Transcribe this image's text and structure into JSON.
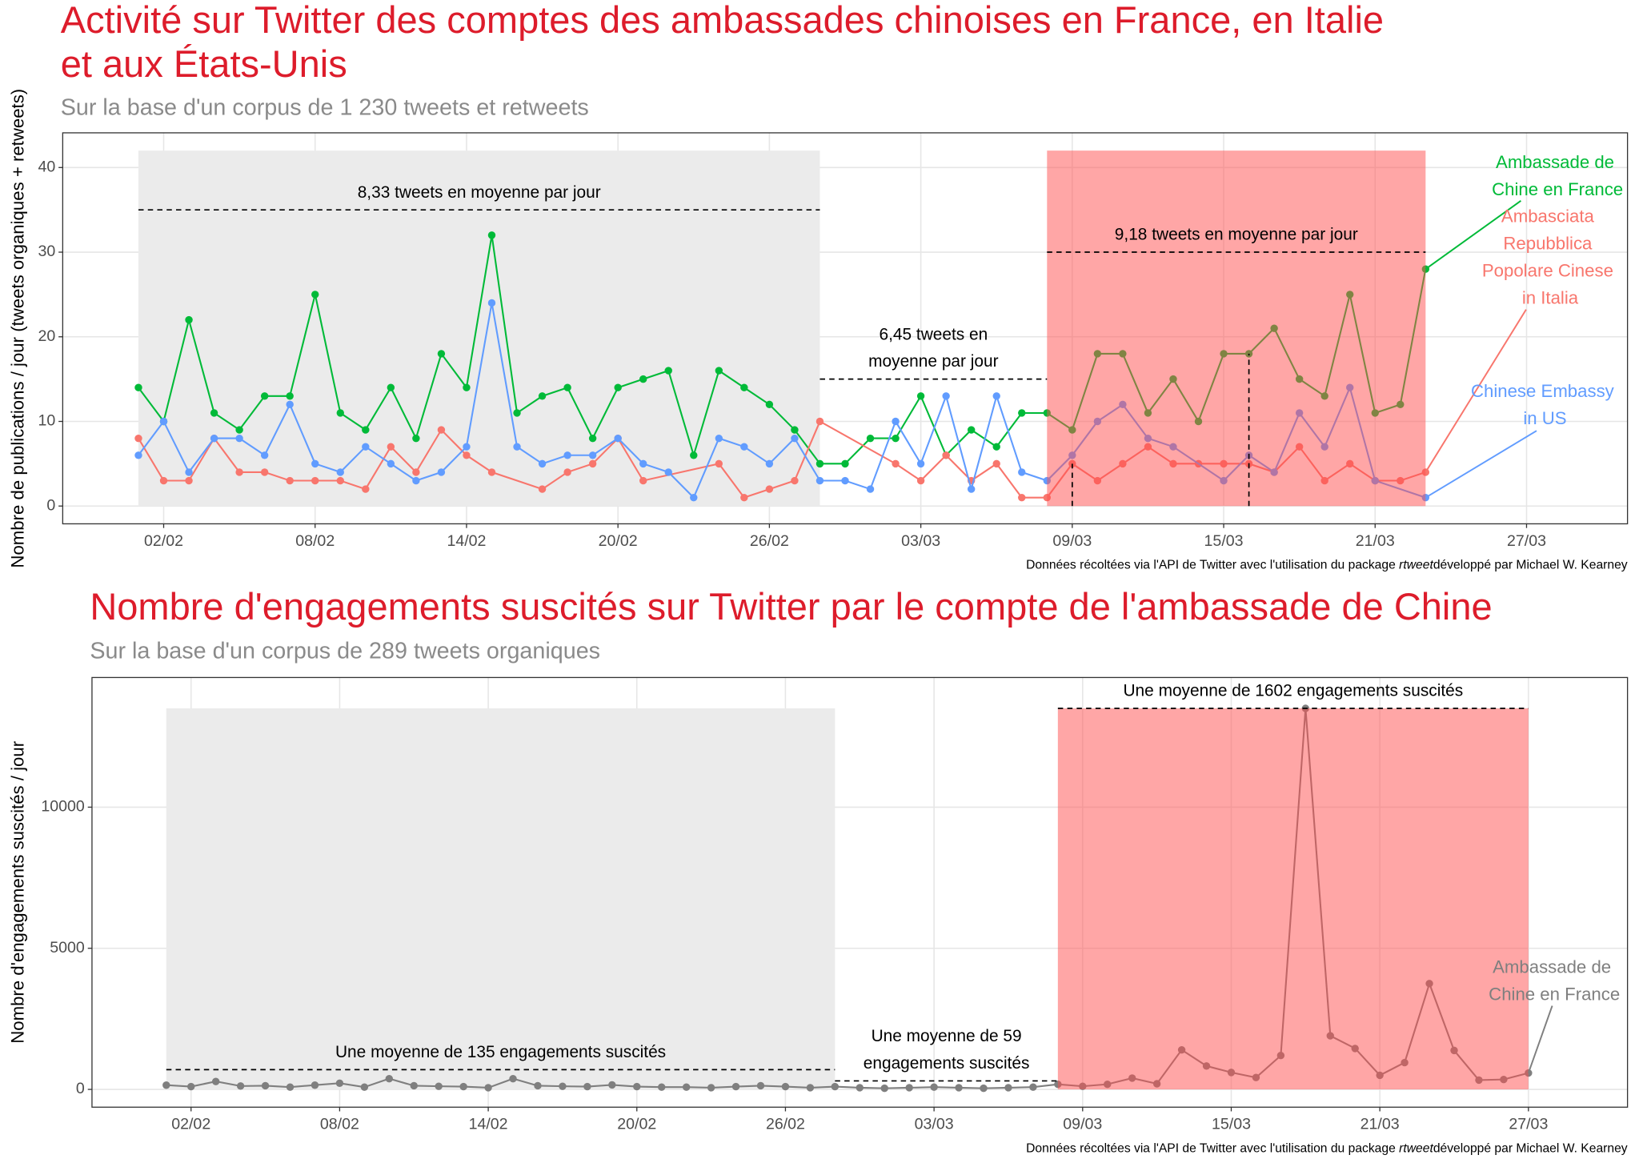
{
  "chart_data": [
    {
      "type": "line",
      "title": [
        "Activité sur Twitter des comptes des ambassades chinoises en France, en Italie",
        "et aux États-Unis"
      ],
      "subtitle": "Sur la base d'un corpus de 1 230 tweets et retweets",
      "ylabel": "Nombre de publications / jour (tweets organiques + retweets)",
      "caption": [
        "Données récoltées via l'API de Twitter avec l'utilisation du package ",
        "rtweet",
        "développé par Michael W. Kearney"
      ],
      "xlim": [
        "29/01",
        "31/03"
      ],
      "xticks": [
        "02/02",
        "08/02",
        "14/02",
        "20/02",
        "26/02",
        "03/03",
        "09/03",
        "15/03",
        "21/03",
        "27/03"
      ],
      "ylim": [
        -2.1,
        44.1
      ],
      "yticks": [
        0,
        10,
        20,
        30,
        40
      ],
      "grid": true,
      "series": [
        {
          "name": "Ambassade de Chine en France",
          "color": "#00ba38",
          "x": [
            "01/02",
            "02/02",
            "03/02",
            "04/02",
            "05/02",
            "06/02",
            "07/02",
            "08/02",
            "09/02",
            "10/02",
            "11/02",
            "12/02",
            "13/02",
            "14/02",
            "15/02",
            "16/02",
            "17/02",
            "18/02",
            "19/02",
            "20/02",
            "21/02",
            "22/02",
            "23/02",
            "24/02",
            "25/02",
            "26/02",
            "27/02",
            "28/02",
            "29/02",
            "01/03",
            "02/03",
            "03/03",
            "04/03",
            "05/03",
            "06/03",
            "07/03",
            "08/03",
            "09/03",
            "10/03",
            "11/03",
            "12/03",
            "13/03",
            "14/03",
            "15/03",
            "16/03",
            "17/03",
            "18/03",
            "19/03",
            "20/03",
            "21/03",
            "22/03",
            "23/03"
          ],
          "values": [
            14,
            10,
            22,
            11,
            9,
            13,
            13,
            25,
            11,
            9,
            14,
            8,
            18,
            14,
            32,
            11,
            13,
            14,
            8,
            14,
            15,
            16,
            6,
            16,
            14,
            12,
            9,
            5,
            5,
            8,
            8,
            13,
            6,
            9,
            7,
            11,
            11,
            9,
            18,
            18,
            11,
            15,
            10,
            18,
            18,
            21,
            15,
            13,
            25,
            11,
            12,
            28
          ]
        },
        {
          "name": "Ambasciata Repubblica Popolare Cinese in Italia",
          "color": "#f8766d",
          "x": [
            "01/02",
            "02/02",
            "03/02",
            "04/02",
            "05/02",
            "06/02",
            "07/02",
            "08/02",
            "09/02",
            "10/02",
            "11/02",
            "12/02",
            "13/02",
            "14/02",
            "15/02",
            "17/02",
            "18/02",
            "19/02",
            "20/02",
            "21/02",
            "24/02",
            "25/02",
            "26/02",
            "27/02",
            "28/02",
            "02/03",
            "03/03",
            "04/03",
            "05/03",
            "06/03",
            "07/03",
            "08/03",
            "09/03",
            "10/03",
            "11/03",
            "12/03",
            "13/03",
            "14/03",
            "15/03",
            "16/03",
            "17/03",
            "18/03",
            "19/03",
            "20/03",
            "21/03",
            "22/03",
            "23/03"
          ],
          "values": [
            8,
            3,
            3,
            8,
            4,
            4,
            3,
            3,
            3,
            2,
            7,
            4,
            9,
            6,
            4,
            2,
            4,
            5,
            8,
            3,
            5,
            1,
            2,
            3,
            10,
            5,
            3,
            6,
            3,
            5,
            1,
            1,
            5,
            3,
            5,
            7,
            5,
            5,
            5,
            5,
            4,
            7,
            3,
            5,
            3,
            3,
            4
          ]
        },
        {
          "name": "Chinese Embassy in US",
          "color": "#619cff",
          "x": [
            "01/02",
            "02/02",
            "03/02",
            "04/02",
            "05/02",
            "06/02",
            "07/02",
            "08/02",
            "09/02",
            "10/02",
            "11/02",
            "12/02",
            "13/02",
            "14/02",
            "15/02",
            "16/02",
            "17/02",
            "18/02",
            "19/02",
            "20/02",
            "21/02",
            "22/02",
            "23/02",
            "24/02",
            "25/02",
            "26/02",
            "27/02",
            "28/02",
            "29/02",
            "01/03",
            "02/03",
            "03/03",
            "04/03",
            "05/03",
            "06/03",
            "07/03",
            "08/03",
            "09/03",
            "10/03",
            "11/03",
            "12/03",
            "13/03",
            "15/03",
            "16/03",
            "17/03",
            "18/03",
            "19/03",
            "20/03",
            "21/03",
            "23/03"
          ],
          "values": [
            6,
            10,
            4,
            8,
            8,
            6,
            12,
            5,
            4,
            7,
            5,
            3,
            4,
            7,
            24,
            7,
            5,
            6,
            6,
            8,
            5,
            4,
            1,
            8,
            7,
            5,
            8,
            3,
            3,
            2,
            10,
            5,
            13,
            2,
            13,
            4,
            3,
            6,
            10,
            12,
            8,
            7,
            3,
            6,
            4,
            11,
            7,
            14,
            3,
            1
          ]
        }
      ],
      "spans": [
        {
          "x": [
            "01/02",
            "28/02"
          ],
          "y": [
            0,
            42
          ],
          "color": "#ebebeb"
        },
        {
          "x": [
            "08/03",
            "23/03"
          ],
          "y": [
            0,
            42
          ],
          "color": "#ff4d4d"
        }
      ],
      "annotations": [
        {
          "text": [
            "8,33 tweets en moyenne par jour"
          ],
          "x": [
            "01/02",
            "28/02"
          ],
          "y": 35
        },
        {
          "text": [
            "6,45 tweets en",
            "moyenne par jour"
          ],
          "x": [
            "28/02",
            "08/03"
          ],
          "y": 15
        },
        {
          "text": [
            "9,18 tweets en moyenne par jour"
          ],
          "x": [
            "08/03",
            "23/03"
          ],
          "y": 30
        }
      ],
      "vlines": [
        {
          "x": "09/03",
          "y": 5
        },
        {
          "x": "16/03",
          "y": 18
        }
      ]
    },
    {
      "type": "line",
      "title": [
        "Nombre d'engagements suscités sur Twitter par le compte de l'ambassade de Chine"
      ],
      "subtitle": "Sur la base d'un corpus de 289 tweets organiques",
      "ylabel": "Nombre d'engagements suscités / jour",
      "caption": [
        "Données récoltées via l'API de Twitter avec l'utilisation du package ",
        "rtweet",
        "développé par Michael W. Kearney"
      ],
      "xlim": [
        "29/01",
        "31/03"
      ],
      "xticks": [
        "02/02",
        "08/02",
        "14/02",
        "20/02",
        "26/02",
        "03/03",
        "09/03",
        "15/03",
        "21/03",
        "27/03"
      ],
      "ylim": [
        -630,
        14594
      ],
      "yticks": [
        0,
        5000,
        10000
      ],
      "grid": true,
      "series": [
        {
          "name": "Ambassade de Chine en France",
          "color": "#7f7f7f",
          "x": [
            "01/02",
            "02/02",
            "03/02",
            "04/02",
            "05/02",
            "06/02",
            "07/02",
            "08/02",
            "09/02",
            "10/02",
            "11/02",
            "12/02",
            "13/02",
            "14/02",
            "15/02",
            "16/02",
            "17/02",
            "18/02",
            "19/02",
            "20/02",
            "21/02",
            "22/02",
            "23/02",
            "24/02",
            "25/02",
            "26/02",
            "27/02",
            "28/02",
            "29/02",
            "01/03",
            "02/03",
            "03/03",
            "04/03",
            "05/03",
            "06/03",
            "07/03",
            "08/03",
            "09/03",
            "10/03",
            "11/03",
            "12/03",
            "13/03",
            "14/03",
            "15/03",
            "16/03",
            "17/03",
            "18/03",
            "19/03",
            "20/03",
            "21/03",
            "22/03",
            "23/03",
            "24/03",
            "25/03",
            "26/03",
            "27/03"
          ],
          "values": [
            150,
            100,
            280,
            120,
            130,
            80,
            150,
            220,
            80,
            380,
            130,
            110,
            100,
            60,
            380,
            130,
            110,
            100,
            160,
            100,
            80,
            80,
            60,
            100,
            130,
            100,
            60,
            100,
            60,
            40,
            60,
            80,
            60,
            40,
            60,
            80,
            180,
            110,
            180,
            400,
            200,
            1400,
            830,
            600,
            420,
            1200,
            13500,
            1900,
            1450,
            500,
            950,
            3750,
            1380,
            330,
            350,
            580
          ]
        }
      ],
      "spans": [
        {
          "x": [
            "01/02",
            "28/02"
          ],
          "y": [
            0,
            13500
          ],
          "color": "#ebebeb"
        },
        {
          "x": [
            "08/03",
            "27/03"
          ],
          "y": [
            0,
            13500
          ],
          "color": "#ff4d4d"
        }
      ],
      "annotations": [
        {
          "text": [
            "Une moyenne de 135 engagements suscités"
          ],
          "x": [
            "01/02",
            "28/02"
          ],
          "y": 700
        },
        {
          "text": [
            "Une moyenne de 59",
            "engagements suscités"
          ],
          "x": [
            "28/02",
            "08/03"
          ],
          "y": 300
        },
        {
          "text": [
            "Une moyenne de 1602 engagements suscités"
          ],
          "x": [
            "08/03",
            "27/03"
          ],
          "y": 13500
        }
      ],
      "vlines": []
    }
  ]
}
